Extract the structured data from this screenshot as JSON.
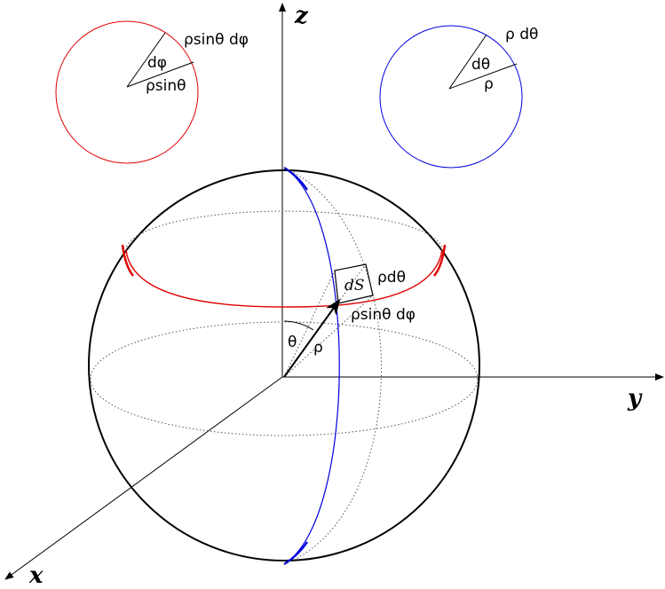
{
  "axes": {
    "z_label": "z",
    "y_label": "y",
    "x_label": "x"
  },
  "red_circle": {
    "arc_label": "ρsinθ dφ",
    "angle_label": "dφ",
    "radius_label": "ρsinθ"
  },
  "blue_circle": {
    "arc_label": "ρ dθ",
    "angle_label": "dθ",
    "radius_label": "ρ"
  },
  "sphere": {
    "patch_label": "dS",
    "patch_side_label": "ρdθ",
    "patch_bottom_label": "ρsinθ dφ",
    "polar_angle_label": "θ",
    "vector_label": "ρ"
  },
  "colors": {
    "red": "#e00000",
    "blue": "#0000e0",
    "black": "#000000"
  }
}
